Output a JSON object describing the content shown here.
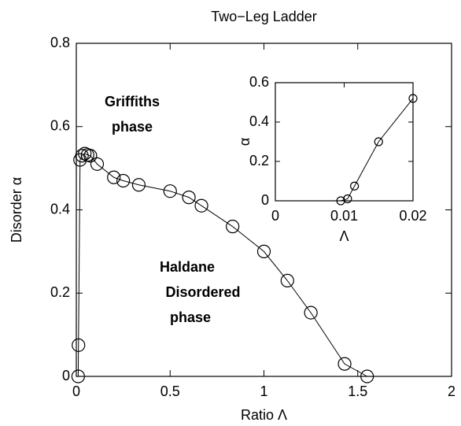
{
  "chart_data": [
    {
      "type": "line",
      "title": "Two−Leg Ladder",
      "xlabel": "Ratio Λ",
      "ylabel": "Disorder α",
      "x": [
        0.01,
        0.0115,
        0.02,
        0.03,
        0.045,
        0.06,
        0.075,
        0.111,
        0.2,
        0.25,
        0.333,
        0.5,
        0.6,
        0.667,
        0.833,
        1,
        1.125,
        1.25,
        1.43,
        1.55
      ],
      "series": [
        {
          "name": "Disorder",
          "color": "#000000",
          "values": [
            0,
            0.075,
            0.52,
            0.53,
            0.535,
            0.532,
            0.53,
            0.51,
            0.478,
            0.47,
            0.46,
            0.445,
            0.43,
            0.41,
            0.36,
            0.3,
            0.23,
            0.153,
            0.03,
            0
          ]
        }
      ],
      "xlim": [
        0,
        2
      ],
      "xticks": [
        0,
        0.5,
        1,
        1.5,
        2
      ],
      "ylim": [
        0,
        0.8
      ],
      "yticks": [
        0,
        0.2,
        0.4,
        0.6,
        0.8
      ],
      "annotations": [
        {
          "lines": [
            "Griffiths",
            "phase"
          ]
        },
        {
          "lines": [
            "Haldane",
            "Disordered",
            "phase"
          ]
        }
      ]
    },
    {
      "type": "line",
      "xlabel": "Λ",
      "ylabel": "α",
      "x": [
        0.0095,
        0.0105,
        0.0115,
        0.015,
        0.02
      ],
      "series": [
        {
          "name": "Inset",
          "color": "#000000",
          "values": [
            0,
            0.01,
            0.075,
            0.3,
            0.52
          ]
        }
      ],
      "xlim": [
        0,
        0.02
      ],
      "xticks": [
        0,
        0.01,
        0.02
      ],
      "ylim": [
        0,
        0.6
      ],
      "yticks": [
        0,
        0.2,
        0.4,
        0.6
      ]
    }
  ]
}
